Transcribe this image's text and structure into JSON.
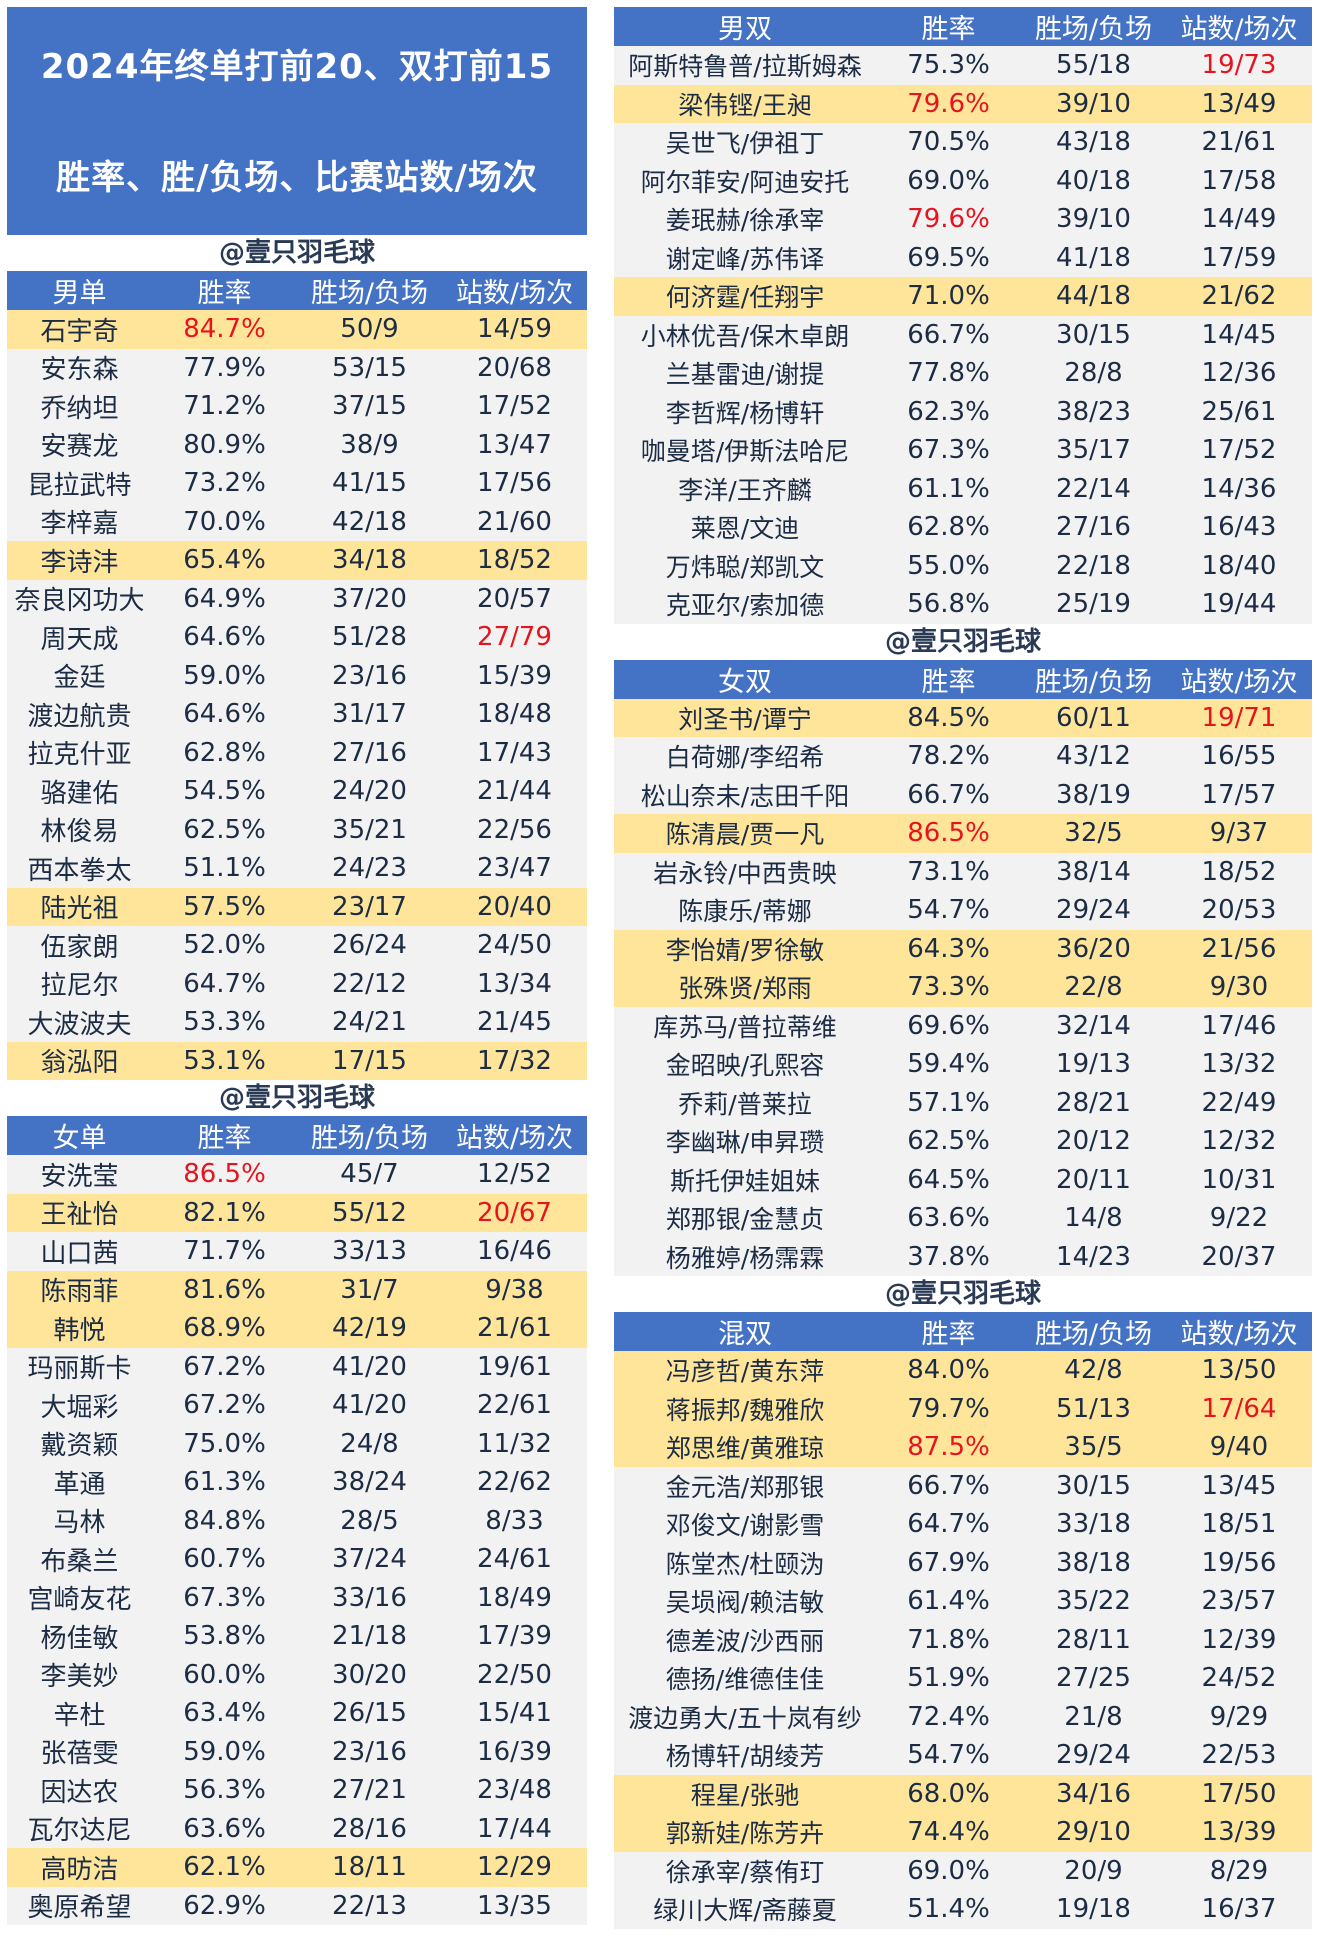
{
  "title": {
    "line1": "2024年终单打前20、双打前15",
    "line2": "胜率、胜/负场、比赛站数/场次"
  },
  "watermark": "@壹只羽毛球",
  "tables": {
    "ms": {
      "header": [
        "男单",
        "胜率",
        "胜场/负场",
        "站数/场次"
      ],
      "rows": [
        {
          "name": "石宇奇",
          "rate": "84.7%",
          "wl": "50/9",
          "ev": "14/59",
          "hl": true,
          "red": [
            "rate"
          ]
        },
        {
          "name": "安东森",
          "rate": "77.9%",
          "wl": "53/15",
          "ev": "20/68",
          "hl": false,
          "red": []
        },
        {
          "name": "乔纳坦",
          "rate": "71.2%",
          "wl": "37/15",
          "ev": "17/52",
          "hl": false,
          "red": []
        },
        {
          "name": "安赛龙",
          "rate": "80.9%",
          "wl": "38/9",
          "ev": "13/47",
          "hl": false,
          "red": []
        },
        {
          "name": "昆拉武特",
          "rate": "73.2%",
          "wl": "41/15",
          "ev": "17/56",
          "hl": false,
          "red": []
        },
        {
          "name": "李梓嘉",
          "rate": "70.0%",
          "wl": "42/18",
          "ev": "21/60",
          "hl": false,
          "red": []
        },
        {
          "name": "李诗沣",
          "rate": "65.4%",
          "wl": "34/18",
          "ev": "18/52",
          "hl": true,
          "red": []
        },
        {
          "name": "奈良冈功大",
          "rate": "64.9%",
          "wl": "37/20",
          "ev": "20/57",
          "hl": false,
          "red": []
        },
        {
          "name": "周天成",
          "rate": "64.6%",
          "wl": "51/28",
          "ev": "27/79",
          "hl": false,
          "red": [
            "ev"
          ]
        },
        {
          "name": "金廷",
          "rate": "59.0%",
          "wl": "23/16",
          "ev": "15/39",
          "hl": false,
          "red": []
        },
        {
          "name": "渡边航贵",
          "rate": "64.6%",
          "wl": "31/17",
          "ev": "18/48",
          "hl": false,
          "red": []
        },
        {
          "name": "拉克什亚",
          "rate": "62.8%",
          "wl": "27/16",
          "ev": "17/43",
          "hl": false,
          "red": []
        },
        {
          "name": "骆建佑",
          "rate": "54.5%",
          "wl": "24/20",
          "ev": "21/44",
          "hl": false,
          "red": []
        },
        {
          "name": "林俊易",
          "rate": "62.5%",
          "wl": "35/21",
          "ev": "22/56",
          "hl": false,
          "red": []
        },
        {
          "name": "西本拳太",
          "rate": "51.1%",
          "wl": "24/23",
          "ev": "23/47",
          "hl": false,
          "red": []
        },
        {
          "name": "陆光祖",
          "rate": "57.5%",
          "wl": "23/17",
          "ev": "20/40",
          "hl": true,
          "red": []
        },
        {
          "name": "伍家朗",
          "rate": "52.0%",
          "wl": "26/24",
          "ev": "24/50",
          "hl": false,
          "red": []
        },
        {
          "name": "拉尼尔",
          "rate": "64.7%",
          "wl": "22/12",
          "ev": "13/34",
          "hl": false,
          "red": []
        },
        {
          "name": "大波波夫",
          "rate": "53.3%",
          "wl": "24/21",
          "ev": "21/45",
          "hl": false,
          "red": []
        },
        {
          "name": "翁泓阳",
          "rate": "53.1%",
          "wl": "17/15",
          "ev": "17/32",
          "hl": true,
          "red": []
        }
      ]
    },
    "ws": {
      "header": [
        "女单",
        "胜率",
        "胜场/负场",
        "站数/场次"
      ],
      "rows": [
        {
          "name": "安洗莹",
          "rate": "86.5%",
          "wl": "45/7",
          "ev": "12/52",
          "hl": false,
          "red": [
            "rate"
          ]
        },
        {
          "name": "王祉怡",
          "rate": "82.1%",
          "wl": "55/12",
          "ev": "20/67",
          "hl": true,
          "red": [
            "ev"
          ]
        },
        {
          "name": "山口茜",
          "rate": "71.7%",
          "wl": "33/13",
          "ev": "16/46",
          "hl": false,
          "red": []
        },
        {
          "name": "陈雨菲",
          "rate": "81.6%",
          "wl": "31/7",
          "ev": "9/38",
          "hl": true,
          "red": []
        },
        {
          "name": "韩悦",
          "rate": "68.9%",
          "wl": "42/19",
          "ev": "21/61",
          "hl": true,
          "red": []
        },
        {
          "name": "玛丽斯卡",
          "rate": "67.2%",
          "wl": "41/20",
          "ev": "19/61",
          "hl": false,
          "red": []
        },
        {
          "name": "大堀彩",
          "rate": "67.2%",
          "wl": "41/20",
          "ev": "22/61",
          "hl": false,
          "red": []
        },
        {
          "name": "戴资颖",
          "rate": "75.0%",
          "wl": "24/8",
          "ev": "11/32",
          "hl": false,
          "red": []
        },
        {
          "name": "革通",
          "rate": "61.3%",
          "wl": "38/24",
          "ev": "22/62",
          "hl": false,
          "red": []
        },
        {
          "name": "马林",
          "rate": "84.8%",
          "wl": "28/5",
          "ev": "8/33",
          "hl": false,
          "red": []
        },
        {
          "name": "布桑兰",
          "rate": "60.7%",
          "wl": "37/24",
          "ev": "24/61",
          "hl": false,
          "red": []
        },
        {
          "name": "宫崎友花",
          "rate": "67.3%",
          "wl": "33/16",
          "ev": "18/49",
          "hl": false,
          "red": []
        },
        {
          "name": "杨佳敏",
          "rate": "53.8%",
          "wl": "21/18",
          "ev": "17/39",
          "hl": false,
          "red": []
        },
        {
          "name": "李美妙",
          "rate": "60.0%",
          "wl": "30/20",
          "ev": "22/50",
          "hl": false,
          "red": []
        },
        {
          "name": "辛杜",
          "rate": "63.4%",
          "wl": "26/15",
          "ev": "15/41",
          "hl": false,
          "red": []
        },
        {
          "name": "张蓓雯",
          "rate": "59.0%",
          "wl": "23/16",
          "ev": "16/39",
          "hl": false,
          "red": []
        },
        {
          "name": "因达农",
          "rate": "56.3%",
          "wl": "27/21",
          "ev": "23/48",
          "hl": false,
          "red": []
        },
        {
          "name": "瓦尔达尼",
          "rate": "63.6%",
          "wl": "28/16",
          "ev": "17/44",
          "hl": false,
          "red": []
        },
        {
          "name": "高昉洁",
          "rate": "62.1%",
          "wl": "18/11",
          "ev": "12/29",
          "hl": true,
          "red": []
        },
        {
          "name": "奥原希望",
          "rate": "62.9%",
          "wl": "22/13",
          "ev": "13/35",
          "hl": false,
          "red": []
        }
      ]
    },
    "md": {
      "header": [
        "男双",
        "胜率",
        "胜场/负场",
        "站数/场次"
      ],
      "rows": [
        {
          "name": "阿斯特鲁普/拉斯姆森",
          "rate": "75.3%",
          "wl": "55/18",
          "ev": "19/73",
          "hl": false,
          "red": [
            "ev"
          ]
        },
        {
          "name": "梁伟铿/王昶",
          "rate": "79.6%",
          "wl": "39/10",
          "ev": "13/49",
          "hl": true,
          "red": [
            "rate"
          ]
        },
        {
          "name": "吴世飞/伊祖丁",
          "rate": "70.5%",
          "wl": "43/18",
          "ev": "21/61",
          "hl": false,
          "red": []
        },
        {
          "name": "阿尔菲安/阿迪安托",
          "rate": "69.0%",
          "wl": "40/18",
          "ev": "17/58",
          "hl": false,
          "red": []
        },
        {
          "name": "姜珉赫/徐承宰",
          "rate": "79.6%",
          "wl": "39/10",
          "ev": "14/49",
          "hl": false,
          "red": [
            "rate"
          ]
        },
        {
          "name": "谢定峰/苏伟译",
          "rate": "69.5%",
          "wl": "41/18",
          "ev": "17/59",
          "hl": false,
          "red": []
        },
        {
          "name": "何济霆/任翔宇",
          "rate": "71.0%",
          "wl": "44/18",
          "ev": "21/62",
          "hl": true,
          "red": []
        },
        {
          "name": "小林优吾/保木卓朗",
          "rate": "66.7%",
          "wl": "30/15",
          "ev": "14/45",
          "hl": false,
          "red": []
        },
        {
          "name": "兰基雷迪/谢提",
          "rate": "77.8%",
          "wl": "28/8",
          "ev": "12/36",
          "hl": false,
          "red": []
        },
        {
          "name": "李哲辉/杨博轩",
          "rate": "62.3%",
          "wl": "38/23",
          "ev": "25/61",
          "hl": false,
          "red": []
        },
        {
          "name": "咖曼塔/伊斯法哈尼",
          "rate": "67.3%",
          "wl": "35/17",
          "ev": "17/52",
          "hl": false,
          "red": []
        },
        {
          "name": "李洋/王齐麟",
          "rate": "61.1%",
          "wl": "22/14",
          "ev": "14/36",
          "hl": false,
          "red": []
        },
        {
          "name": "莱恩/文迪",
          "rate": "62.8%",
          "wl": "27/16",
          "ev": "16/43",
          "hl": false,
          "red": []
        },
        {
          "name": "万炜聪/郑凯文",
          "rate": "55.0%",
          "wl": "22/18",
          "ev": "18/40",
          "hl": false,
          "red": []
        },
        {
          "name": "克亚尔/索加德",
          "rate": "56.8%",
          "wl": "25/19",
          "ev": "19/44",
          "hl": false,
          "red": []
        }
      ]
    },
    "wd": {
      "header": [
        "女双",
        "胜率",
        "胜场/负场",
        "站数/场次"
      ],
      "rows": [
        {
          "name": "刘圣书/谭宁",
          "rate": "84.5%",
          "wl": "60/11",
          "ev": "19/71",
          "hl": true,
          "red": [
            "ev"
          ]
        },
        {
          "name": "白荷娜/李绍希",
          "rate": "78.2%",
          "wl": "43/12",
          "ev": "16/55",
          "hl": false,
          "red": []
        },
        {
          "name": "松山奈未/志田千阳",
          "rate": "66.7%",
          "wl": "38/19",
          "ev": "17/57",
          "hl": false,
          "red": []
        },
        {
          "name": "陈清晨/贾一凡",
          "rate": "86.5%",
          "wl": "32/5",
          "ev": "9/37",
          "hl": true,
          "red": [
            "rate"
          ]
        },
        {
          "name": "岩永铃/中西贵映",
          "rate": "73.1%",
          "wl": "38/14",
          "ev": "18/52",
          "hl": false,
          "red": []
        },
        {
          "name": "陈康乐/蒂娜",
          "rate": "54.7%",
          "wl": "29/24",
          "ev": "20/53",
          "hl": false,
          "red": []
        },
        {
          "name": "李怡婧/罗徐敏",
          "rate": "64.3%",
          "wl": "36/20",
          "ev": "21/56",
          "hl": true,
          "red": []
        },
        {
          "name": "张殊贤/郑雨",
          "rate": "73.3%",
          "wl": "22/8",
          "ev": "9/30",
          "hl": true,
          "red": []
        },
        {
          "name": "库苏马/普拉蒂维",
          "rate": "69.6%",
          "wl": "32/14",
          "ev": "17/46",
          "hl": false,
          "red": []
        },
        {
          "name": "金昭映/孔熙容",
          "rate": "59.4%",
          "wl": "19/13",
          "ev": "13/32",
          "hl": false,
          "red": []
        },
        {
          "name": "乔莉/普莱拉",
          "rate": "57.1%",
          "wl": "28/21",
          "ev": "22/49",
          "hl": false,
          "red": []
        },
        {
          "name": "李幽琳/申昇瓒",
          "rate": "62.5%",
          "wl": "20/12",
          "ev": "12/32",
          "hl": false,
          "red": []
        },
        {
          "name": "斯托伊娃姐妹",
          "rate": "64.5%",
          "wl": "20/11",
          "ev": "10/31",
          "hl": false,
          "red": []
        },
        {
          "name": "郑那银/金慧贞",
          "rate": "63.6%",
          "wl": "14/8",
          "ev": "9/22",
          "hl": false,
          "red": []
        },
        {
          "name": "杨雅婷/杨霈霖",
          "rate": "37.8%",
          "wl": "14/23",
          "ev": "20/37",
          "hl": false,
          "red": []
        }
      ]
    },
    "xd": {
      "header": [
        "混双",
        "胜率",
        "胜场/负场",
        "站数/场次"
      ],
      "rows": [
        {
          "name": "冯彦哲/黄东萍",
          "rate": "84.0%",
          "wl": "42/8",
          "ev": "13/50",
          "hl": true,
          "red": []
        },
        {
          "name": "蒋振邦/魏雅欣",
          "rate": "79.7%",
          "wl": "51/13",
          "ev": "17/64",
          "hl": true,
          "red": [
            "ev"
          ]
        },
        {
          "name": "郑思维/黄雅琼",
          "rate": "87.5%",
          "wl": "35/5",
          "ev": "9/40",
          "hl": true,
          "red": [
            "rate"
          ]
        },
        {
          "name": "金元浩/郑那银",
          "rate": "66.7%",
          "wl": "30/15",
          "ev": "13/45",
          "hl": false,
          "red": []
        },
        {
          "name": "邓俊文/谢影雪",
          "rate": "64.7%",
          "wl": "33/18",
          "ev": "18/51",
          "hl": false,
          "red": []
        },
        {
          "name": "陈堂杰/杜颐沩",
          "rate": "67.9%",
          "wl": "38/18",
          "ev": "19/56",
          "hl": false,
          "red": []
        },
        {
          "name": "吴埙阀/赖洁敏",
          "rate": "61.4%",
          "wl": "35/22",
          "ev": "23/57",
          "hl": false,
          "red": []
        },
        {
          "name": "德差波/沙西丽",
          "rate": "71.8%",
          "wl": "28/11",
          "ev": "12/39",
          "hl": false,
          "red": []
        },
        {
          "name": "德扬/维德佳佳",
          "rate": "51.9%",
          "wl": "27/25",
          "ev": "24/52",
          "hl": false,
          "red": []
        },
        {
          "name": "渡边勇大/五十岚有纱",
          "rate": "72.4%",
          "wl": "21/8",
          "ev": "9/29",
          "hl": false,
          "red": []
        },
        {
          "name": "杨博轩/胡绫芳",
          "rate": "54.7%",
          "wl": "29/24",
          "ev": "22/53",
          "hl": false,
          "red": []
        },
        {
          "name": "程星/张驰",
          "rate": "68.0%",
          "wl": "34/16",
          "ev": "17/50",
          "hl": true,
          "red": []
        },
        {
          "name": "郭新娃/陈芳卉",
          "rate": "74.4%",
          "wl": "29/10",
          "ev": "13/39",
          "hl": true,
          "red": []
        },
        {
          "name": "徐承宰/蔡侑玎",
          "rate": "69.0%",
          "wl": "20/9",
          "ev": "8/29",
          "hl": false,
          "red": []
        },
        {
          "name": "绿川大辉/斋藤夏",
          "rate": "51.4%",
          "wl": "19/18",
          "ev": "16/37",
          "hl": false,
          "red": []
        }
      ]
    }
  },
  "colors": {
    "header_blue": "#4472c4",
    "highlight_yellow": "#ffe599",
    "row_gray": "#f2f2f2",
    "emphasis_red": "#e6141e"
  }
}
